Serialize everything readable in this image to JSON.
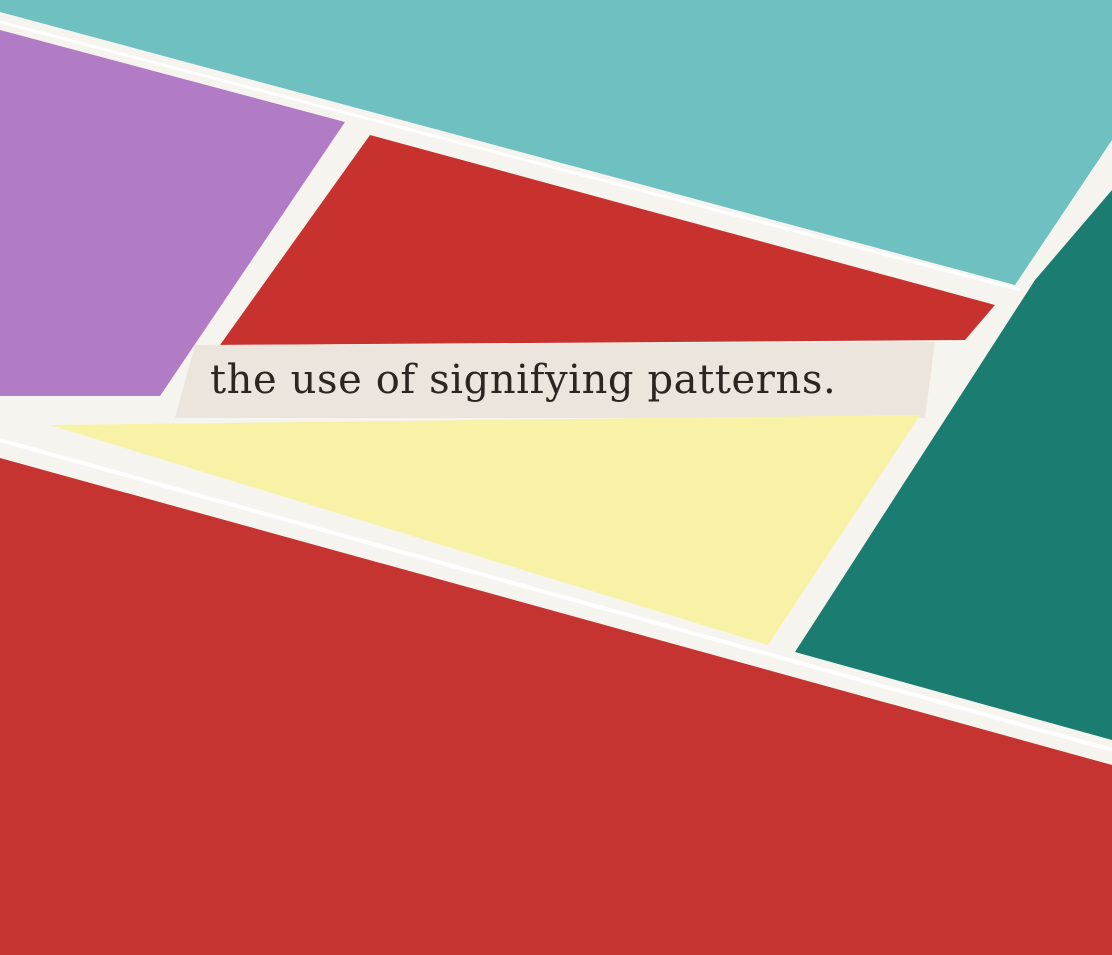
{
  "collage": {
    "caption": "the use of signifying patterns.",
    "colors": {
      "paper": "#f6f4ee",
      "teal_light": "#6fc0c1",
      "teal_dark": "#1b7d72",
      "purple": "#b27bc6",
      "red_upper": "#c8322e",
      "red_lower": "#c53431",
      "yellow": "#f8f2a6",
      "strip": "#ece5dd",
      "ink": "#2b2622"
    }
  }
}
